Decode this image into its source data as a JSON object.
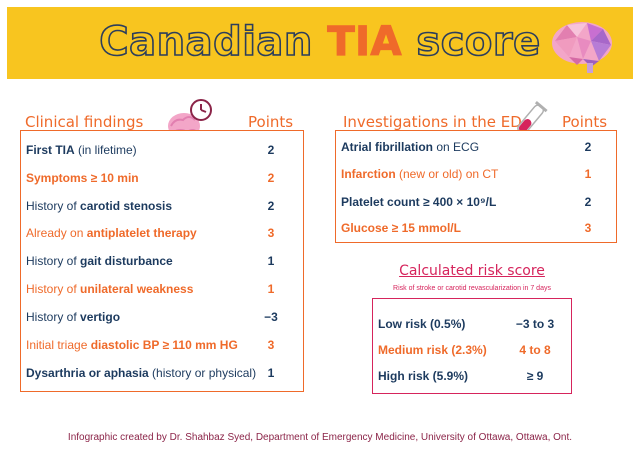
{
  "header": {
    "title_part1": "Canadian ",
    "title_highlight": "TIA",
    "title_part2": " score"
  },
  "clinical": {
    "heading": "Clinical findings",
    "points_heading": "Points",
    "rows": [
      {
        "pre": "",
        "bold": "First TIA",
        "post": " (in lifetime)",
        "points": "2",
        "color": "navy"
      },
      {
        "pre": "",
        "bold": "Symptoms ≥ 10 min",
        "post": "",
        "points": "2",
        "color": "orange"
      },
      {
        "pre": "History of ",
        "bold": "carotid stenosis",
        "post": "",
        "points": "2",
        "color": "navy"
      },
      {
        "pre": "Already on ",
        "bold": "antiplatelet therapy",
        "post": "",
        "points": "3",
        "color": "orange"
      },
      {
        "pre": "History of ",
        "bold": "gait disturbance",
        "post": "",
        "points": "1",
        "color": "navy"
      },
      {
        "pre": "History of ",
        "bold": "unilateral weakness",
        "post": "",
        "points": "1",
        "color": "orange"
      },
      {
        "pre": "History of ",
        "bold": "vertigo",
        "post": "",
        "points": "−3",
        "color": "navy"
      },
      {
        "pre": "Initial triage ",
        "bold": "diastolic BP ≥ 110 mm HG",
        "post": "",
        "points": "3",
        "color": "orange"
      },
      {
        "pre": "",
        "bold": "Dysarthria or aphasia",
        "post": " (history or physical)",
        "points": "1",
        "color": "navy"
      }
    ]
  },
  "investigations": {
    "heading": "Investigations in the ED",
    "points_heading": "Points",
    "rows": [
      {
        "pre": "",
        "bold": "Atrial fibrillation",
        "post": " on ECG",
        "points": "2",
        "color": "navy"
      },
      {
        "pre": "",
        "bold": "Infarction",
        "post": " (new or old) on CT",
        "points": "1",
        "color": "orange"
      },
      {
        "pre": "",
        "bold": "Platelet count ≥ 400 × 10⁹/L",
        "post": "",
        "points": "2",
        "color": "navy"
      },
      {
        "pre": "",
        "bold": "Glucose ≥ 15 mmol/L",
        "post": "",
        "points": "3",
        "color": "orange"
      }
    ]
  },
  "risk": {
    "title": "Calculated risk score",
    "subtitle": "Risk of stroke or carotid revascularization in 7 days",
    "rows": [
      {
        "label": "Low risk (0.5%)",
        "range": "−3 to 3",
        "color": "navy"
      },
      {
        "label": "Medium risk (2.3%)",
        "range": "4 to 8",
        "color": "orange"
      },
      {
        "label": "High risk (5.9%)",
        "range": "≥ 9",
        "color": "navy"
      }
    ]
  },
  "footer": "Infographic created by Dr. Shahbaz Syed, Department of Emergency Medicine, University of Ottawa, Ottawa, Ont.",
  "colors": {
    "banner": "#f8c51f",
    "navy": "#1c3a5e",
    "orange": "#ef6a2a",
    "pink": "#d6245c",
    "footer": "#8b2448"
  },
  "icons": [
    "brain-logo-icon",
    "brain-clock-icon",
    "test-tube-icon"
  ]
}
